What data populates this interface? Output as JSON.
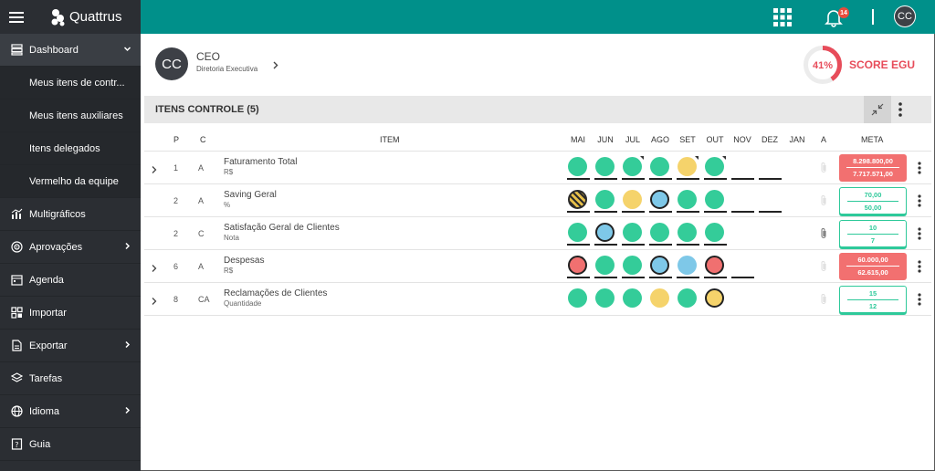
{
  "app": {
    "brand": "Quattrus"
  },
  "sidebar": {
    "items": [
      {
        "label": "Dashboard",
        "icon": "dashboard-icon",
        "has_chevron": true
      },
      {
        "label": "Meus itens de contr..."
      },
      {
        "label": "Meus itens auxiliares"
      },
      {
        "label": "Itens delegados"
      },
      {
        "label": "Vermelho da equipe"
      },
      {
        "label": "Multigráficos",
        "icon": "chart-icon"
      },
      {
        "label": "Aprovações",
        "icon": "target-icon",
        "has_chevron": true
      },
      {
        "label": "Agenda",
        "icon": "calendar-icon"
      },
      {
        "label": "Importar",
        "icon": "import-icon"
      },
      {
        "label": "Exportar",
        "icon": "export-icon",
        "has_chevron": true
      },
      {
        "label": "Tarefas",
        "icon": "layers-icon"
      },
      {
        "label": "Idioma",
        "icon": "globe-icon",
        "has_chevron": true
      },
      {
        "label": "Guia",
        "icon": "guide-icon"
      }
    ]
  },
  "topbar": {
    "notifications_count": "14",
    "user_initials": "CC",
    "color": "#00908a"
  },
  "profile": {
    "initials": "CC",
    "role": "CEO",
    "department": "Diretoria Executiva"
  },
  "score": {
    "percent_label": "41%",
    "percent": 41,
    "label": "SCORE EGU",
    "color": "#e74c5a"
  },
  "panel": {
    "title": "ITENS CONTROLE (5)"
  },
  "table": {
    "headers": {
      "p": "P",
      "c": "C",
      "item": "ITEM",
      "months": [
        "MAI",
        "JUN",
        "JUL",
        "AGO",
        "SET",
        "OUT",
        "NOV",
        "DEZ",
        "JAN"
      ],
      "a": "A",
      "meta": "META"
    },
    "rows": [
      {
        "p": "1",
        "c": "A",
        "name": "Faturamento Total",
        "unit": "R$",
        "marks": [
          "green",
          "green",
          "green",
          "green",
          "yellow",
          "green",
          "empty",
          "empty",
          "none"
        ],
        "meta_top": "8.298.800,00",
        "meta_bottom": "7.717.571,00",
        "meta_status": "red"
      },
      {
        "p": "2",
        "c": "A",
        "name": "Saving Geral",
        "unit": "%",
        "marks": [
          "striped",
          "green",
          "yellow",
          "blue",
          "green",
          "green",
          "empty",
          "empty",
          "none"
        ],
        "meta_top": "70,00",
        "meta_bottom": "50,00",
        "meta_status": "green"
      },
      {
        "p": "2",
        "c": "C",
        "name": "Satisfação Geral de Clientes",
        "unit": "Nota",
        "marks": [
          "green",
          "blue",
          "green",
          "green",
          "green",
          "green",
          "none",
          "none",
          "none"
        ],
        "meta_top": "10",
        "meta_bottom": "7",
        "meta_status": "green"
      },
      {
        "p": "6",
        "c": "A",
        "name": "Despesas",
        "unit": "R$",
        "marks": [
          "red",
          "green",
          "green",
          "blue",
          "lightblue",
          "red",
          "empty",
          "none",
          "none"
        ],
        "meta_top": "60.000,00",
        "meta_bottom": "62.615,00",
        "meta_status": "red"
      },
      {
        "p": "8",
        "c": "CA",
        "name": "Reclamações de Clientes",
        "unit": "Quantidade",
        "marks": [
          "green",
          "green",
          "green",
          "yellow",
          "green",
          "yellow",
          "none",
          "none",
          "none"
        ],
        "meta_top": "15",
        "meta_bottom": "12",
        "meta_status": "green"
      }
    ]
  },
  "colors": {
    "green": "#34cc99",
    "yellow": "#f5d36b",
    "blue": "#7ec8e8",
    "red": "#f07070",
    "lightblue": "#7ec8e8"
  }
}
